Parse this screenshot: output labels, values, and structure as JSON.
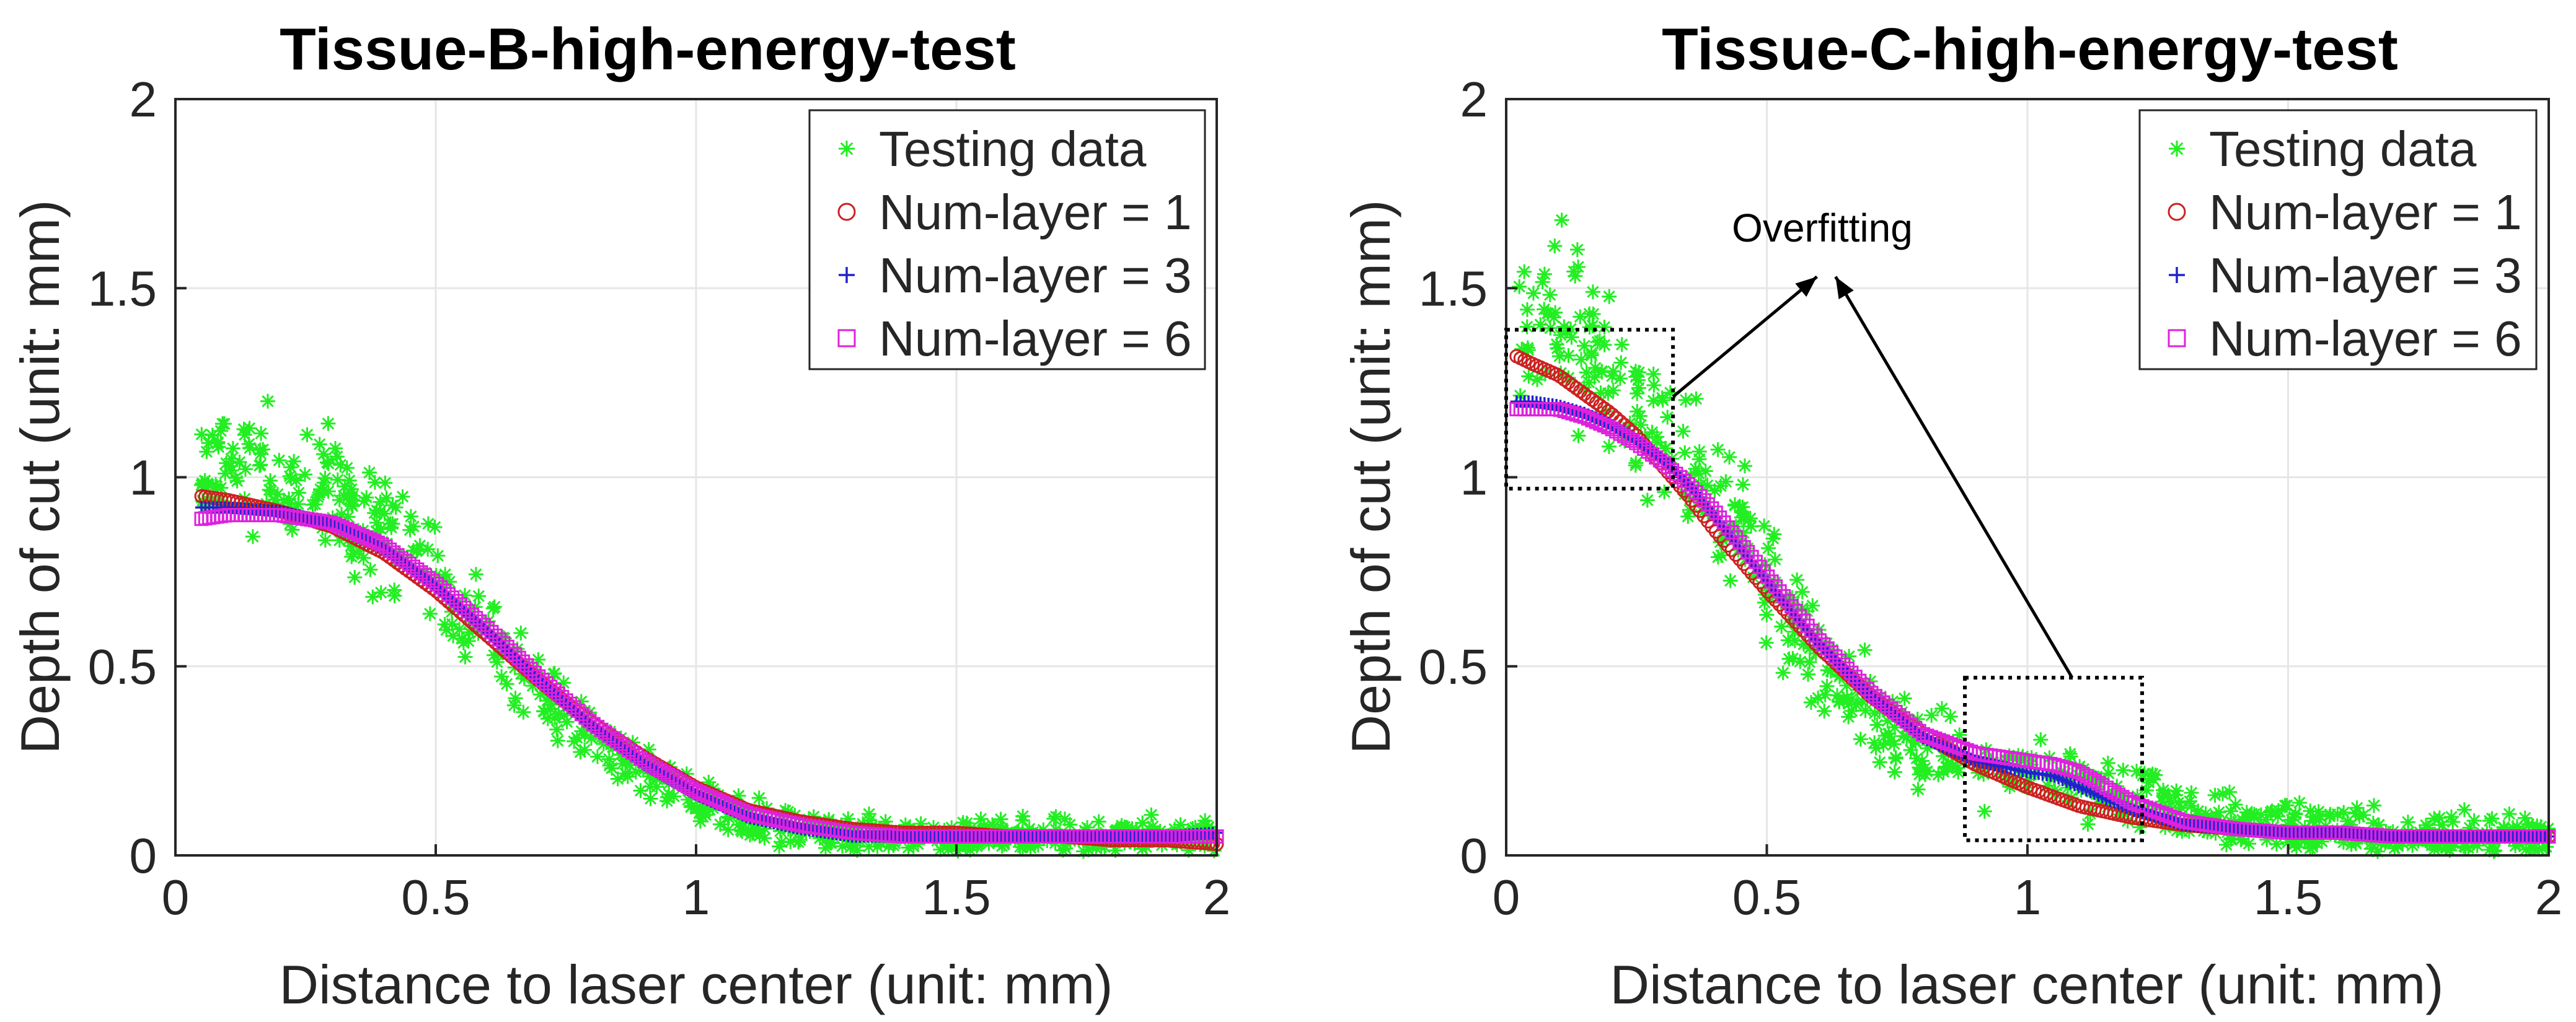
{
  "figure": {
    "layout": "two panels side by side"
  },
  "chart_data": [
    {
      "type": "scatter",
      "title": "Tissue-B-high-energy-test",
      "xlabel": "Distance to laser center (unit: mm)",
      "ylabel": "Depth of cut (unit: mm)",
      "xlim": [
        0,
        2
      ],
      "ylim": [
        0,
        2
      ],
      "xticks": [
        0,
        0.5,
        1,
        1.5,
        2
      ],
      "xtick_labels": [
        "0",
        "0.5",
        "1",
        "1.5",
        "2"
      ],
      "yticks": [
        0,
        0.5,
        1,
        1.5,
        2
      ],
      "ytick_labels": [
        "0",
        "0.5",
        "1",
        "1.5",
        "2"
      ],
      "grid": true,
      "legend_position": "top-right",
      "series": [
        {
          "name": "Testing data",
          "marker": "asterisk",
          "color": "#22ee22",
          "x": [
            0.05,
            0.1,
            0.15,
            0.2,
            0.25,
            0.3,
            0.35,
            0.4,
            0.45,
            0.5,
            0.55,
            0.6,
            0.65,
            0.7,
            0.75,
            0.8,
            0.85,
            0.9,
            0.95,
            1.0,
            1.05,
            1.1,
            1.15,
            1.2,
            1.3,
            1.4,
            1.5,
            1.6,
            1.7,
            1.8,
            1.9,
            2.0
          ],
          "y": [
            0.98,
            1.03,
            1.04,
            1.02,
            1.0,
            0.96,
            0.92,
            0.86,
            0.8,
            0.74,
            0.66,
            0.58,
            0.5,
            0.43,
            0.37,
            0.32,
            0.27,
            0.23,
            0.19,
            0.15,
            0.12,
            0.1,
            0.08,
            0.07,
            0.06,
            0.05,
            0.05,
            0.05,
            0.05,
            0.05,
            0.05,
            0.05
          ],
          "spread": 0.12
        },
        {
          "name": "Num-layer = 1",
          "marker": "circle",
          "color": "#cc2222",
          "x": [
            0.05,
            0.1,
            0.2,
            0.3,
            0.4,
            0.5,
            0.6,
            0.7,
            0.8,
            0.9,
            1.0,
            1.1,
            1.2,
            1.3,
            1.4,
            1.5,
            1.6,
            1.7,
            1.8,
            1.9,
            2.0
          ],
          "y": [
            0.95,
            0.94,
            0.91,
            0.87,
            0.8,
            0.7,
            0.58,
            0.46,
            0.35,
            0.26,
            0.18,
            0.12,
            0.09,
            0.07,
            0.06,
            0.06,
            0.05,
            0.05,
            0.04,
            0.04,
            0.03
          ]
        },
        {
          "name": "Num-layer = 3",
          "marker": "plus",
          "color": "#2222cc",
          "x": [
            0.05,
            0.1,
            0.2,
            0.3,
            0.4,
            0.5,
            0.6,
            0.7,
            0.8,
            0.9,
            1.0,
            1.1,
            1.2,
            1.3,
            1.4,
            1.5,
            1.6,
            1.7,
            1.8,
            1.9,
            2.0
          ],
          "y": [
            0.92,
            0.92,
            0.91,
            0.88,
            0.81,
            0.71,
            0.59,
            0.46,
            0.34,
            0.24,
            0.16,
            0.1,
            0.07,
            0.05,
            0.05,
            0.05,
            0.05,
            0.05,
            0.05,
            0.05,
            0.06
          ]
        },
        {
          "name": "Num-layer = 6",
          "marker": "square",
          "color": "#dd22dd",
          "x": [
            0.05,
            0.1,
            0.2,
            0.3,
            0.4,
            0.5,
            0.6,
            0.7,
            0.8,
            0.9,
            1.0,
            1.1,
            1.2,
            1.3,
            1.4,
            1.5,
            1.6,
            1.7,
            1.8,
            1.9,
            2.0
          ],
          "y": [
            0.89,
            0.9,
            0.9,
            0.88,
            0.82,
            0.72,
            0.6,
            0.47,
            0.35,
            0.25,
            0.17,
            0.11,
            0.08,
            0.06,
            0.05,
            0.05,
            0.05,
            0.05,
            0.05,
            0.05,
            0.05
          ]
        }
      ]
    },
    {
      "type": "scatter",
      "title": "Tissue-C-high-energy-test",
      "xlabel": "Distance to laser center (unit: mm)",
      "ylabel": "Depth of cut (unit: mm)",
      "xlim": [
        0,
        2
      ],
      "ylim": [
        0,
        2
      ],
      "xticks": [
        0,
        0.5,
        1,
        1.5,
        2
      ],
      "xtick_labels": [
        "0",
        "0.5",
        "1",
        "1.5",
        "2"
      ],
      "yticks": [
        0,
        0.5,
        1,
        1.5,
        2
      ],
      "ytick_labels": [
        "0",
        "0.5",
        "1",
        "1.5",
        "2"
      ],
      "grid": true,
      "legend_position": "top-right",
      "annotation": {
        "text": "Overfitting",
        "boxes": [
          {
            "x": [
              0,
              0.32
            ],
            "y": [
              0.97,
              1.39
            ]
          },
          {
            "x": [
              0.88,
              1.22
            ],
            "y": [
              0.04,
              0.47
            ]
          }
        ],
        "arrow_target": [
          0.62,
          1.55
        ]
      },
      "series": [
        {
          "name": "Testing data",
          "marker": "asterisk",
          "color": "#22ee22",
          "x": [
            0.02,
            0.05,
            0.1,
            0.15,
            0.2,
            0.25,
            0.3,
            0.35,
            0.4,
            0.45,
            0.5,
            0.55,
            0.6,
            0.65,
            0.7,
            0.75,
            0.8,
            0.85,
            0.9,
            0.95,
            1.0,
            1.05,
            1.1,
            1.15,
            1.2,
            1.3,
            1.4,
            1.5,
            1.6,
            1.7,
            1.8,
            1.9,
            2.0
          ],
          "y": [
            1.4,
            1.42,
            1.4,
            1.36,
            1.3,
            1.22,
            1.12,
            1.02,
            0.92,
            0.84,
            0.74,
            0.62,
            0.52,
            0.44,
            0.37,
            0.32,
            0.28,
            0.26,
            0.25,
            0.24,
            0.23,
            0.22,
            0.2,
            0.18,
            0.16,
            0.12,
            0.09,
            0.07,
            0.06,
            0.05,
            0.05,
            0.05,
            0.05
          ],
          "spread": 0.16
        },
        {
          "name": "Num-layer = 1",
          "marker": "circle",
          "color": "#cc2222",
          "x": [
            0.02,
            0.05,
            0.1,
            0.15,
            0.2,
            0.25,
            0.3,
            0.35,
            0.4,
            0.5,
            0.6,
            0.7,
            0.8,
            0.9,
            1.0,
            1.1,
            1.2,
            1.3,
            1.4,
            1.5,
            1.6,
            1.7,
            1.8,
            1.9,
            2.0
          ],
          "y": [
            1.32,
            1.3,
            1.27,
            1.22,
            1.17,
            1.11,
            1.03,
            0.95,
            0.86,
            0.7,
            0.55,
            0.42,
            0.32,
            0.24,
            0.18,
            0.13,
            0.1,
            0.08,
            0.07,
            0.06,
            0.06,
            0.05,
            0.05,
            0.05,
            0.05
          ]
        },
        {
          "name": "Num-layer = 3",
          "marker": "plus",
          "color": "#2222cc",
          "x": [
            0.02,
            0.05,
            0.1,
            0.15,
            0.2,
            0.25,
            0.3,
            0.35,
            0.4,
            0.5,
            0.6,
            0.7,
            0.8,
            0.9,
            1.0,
            1.05,
            1.1,
            1.2,
            1.3,
            1.4,
            1.5,
            1.6,
            1.7,
            1.8,
            1.9,
            2.0
          ],
          "y": [
            1.2,
            1.2,
            1.19,
            1.17,
            1.14,
            1.1,
            1.05,
            0.98,
            0.9,
            0.73,
            0.56,
            0.42,
            0.31,
            0.25,
            0.22,
            0.21,
            0.18,
            0.12,
            0.08,
            0.07,
            0.06,
            0.06,
            0.05,
            0.05,
            0.05,
            0.05
          ]
        },
        {
          "name": "Num-layer = 6",
          "marker": "square",
          "color": "#dd22dd",
          "x": [
            0.02,
            0.05,
            0.1,
            0.15,
            0.2,
            0.25,
            0.3,
            0.35,
            0.4,
            0.5,
            0.6,
            0.7,
            0.8,
            0.9,
            1.0,
            1.05,
            1.1,
            1.2,
            1.3,
            1.4,
            1.5,
            1.6,
            1.7,
            1.8,
            1.9,
            2.0
          ],
          "y": [
            1.18,
            1.18,
            1.18,
            1.16,
            1.13,
            1.09,
            1.04,
            0.98,
            0.91,
            0.74,
            0.57,
            0.43,
            0.32,
            0.27,
            0.25,
            0.24,
            0.22,
            0.14,
            0.09,
            0.07,
            0.06,
            0.06,
            0.05,
            0.05,
            0.05,
            0.05
          ]
        }
      ]
    }
  ]
}
